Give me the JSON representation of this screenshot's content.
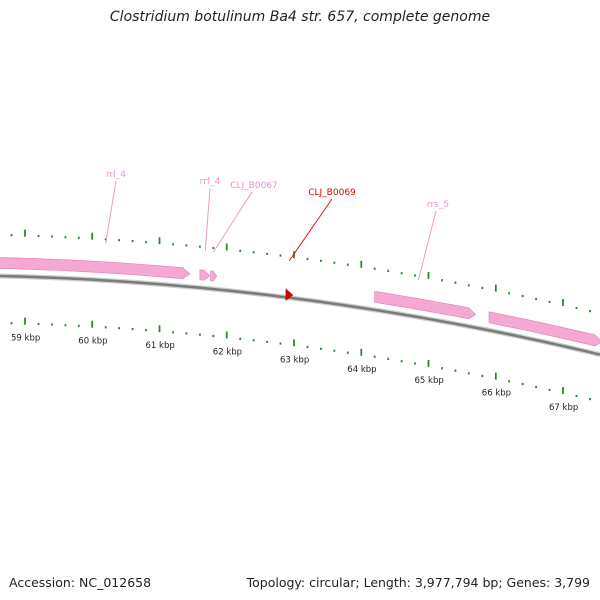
{
  "title": "Clostridium botulinum Ba4 str. 657, complete genome",
  "footer": {
    "accession": "Accession: NC_012658",
    "summary": "Topology: circular; Length: 3,977,794 bp; Genes: 3,799"
  },
  "colors": {
    "gene": "#f5a8d2",
    "gene_edge": "#e07cbc",
    "label_line": "#f090c8",
    "highlight": "#e00000",
    "tick": "#2a8a2a",
    "backbone": "#7a7a7a"
  },
  "axis": {
    "unit": "kbp",
    "range_kbp": [
      58.6,
      67.8
    ],
    "ticks": [
      {
        "pos": 59,
        "label": "59 kbp"
      },
      {
        "pos": 60,
        "label": "60 kbp"
      },
      {
        "pos": 61,
        "label": "61 kbp"
      },
      {
        "pos": 62,
        "label": "62 kbp"
      },
      {
        "pos": 63,
        "label": "63 kbp"
      },
      {
        "pos": 64,
        "label": "64 kbp"
      },
      {
        "pos": 65,
        "label": "65 kbp"
      },
      {
        "pos": 66,
        "label": "66 kbp"
      },
      {
        "pos": 67,
        "label": "67 kbp"
      }
    ]
  },
  "features": [
    {
      "name": "rrl_4",
      "start_kbp": 58.6,
      "end_kbp": 61.45,
      "strand": "+",
      "type": "rRNA"
    },
    {
      "name": "rrf_4",
      "start_kbp": 61.6,
      "end_kbp": 61.75,
      "strand": "+",
      "type": "rRNA"
    },
    {
      "name": "CLJ_B0067",
      "start_kbp": 61.76,
      "end_kbp": 61.85,
      "strand": "+",
      "type": "tRNA"
    },
    {
      "name": "CLJ_B0069",
      "start_kbp": 62.88,
      "end_kbp": 62.98,
      "strand": "+",
      "type": "highlight"
    },
    {
      "name": "rrs_5",
      "start_kbp": 64.2,
      "end_kbp": 65.7,
      "strand": "+",
      "type": "rRNA"
    },
    {
      "name": "",
      "start_kbp": 65.9,
      "end_kbp": 67.8,
      "strand": "+",
      "type": "rRNA"
    }
  ],
  "labels": [
    {
      "text": "rrl_4",
      "anchor_kbp": 60.2,
      "color": "#f090c8"
    },
    {
      "text": "rrf_4",
      "anchor_kbp": 61.68,
      "color": "#f090c8"
    },
    {
      "text": "CLJ_B0067",
      "anchor_kbp": 61.8,
      "color": "#f090c8"
    },
    {
      "text": "CLJ_B0069",
      "anchor_kbp": 62.93,
      "color": "#e00000"
    },
    {
      "text": "rrs_5",
      "anchor_kbp": 64.85,
      "color": "#f090c8"
    }
  ]
}
